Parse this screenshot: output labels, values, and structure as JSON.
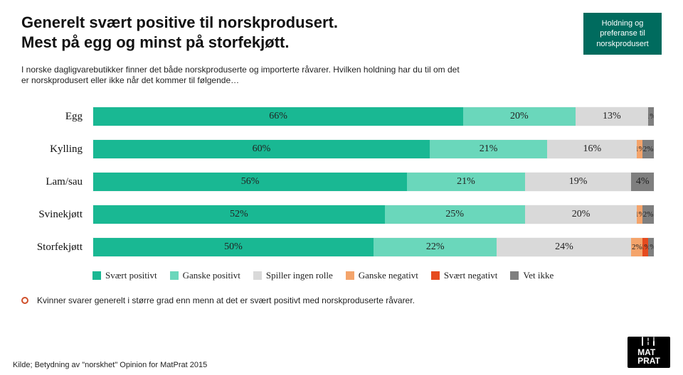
{
  "title_line1": "Generelt svært positive til norskprodusert.",
  "title_line2": "Mest på egg og minst på storfekjøtt.",
  "badge_line1": "Holdning og",
  "badge_line2": "preferanse til",
  "badge_line3": "norskprodusert",
  "subtitle": "I norske dagligvarebutikker finner det både norskproduserte og importerte råvarer. Hvilken holdning har du til om det er norskprodusert eller ikke når det kommer til følgende…",
  "categories": [
    {
      "label": "Egg",
      "vals": [
        66,
        20,
        13,
        0,
        0,
        1
      ]
    },
    {
      "label": "Kylling",
      "vals": [
        60,
        21,
        16,
        1,
        0,
        2
      ]
    },
    {
      "label": "Lam/sau",
      "vals": [
        56,
        21,
        19,
        0,
        0,
        4
      ]
    },
    {
      "label": "Svinekjøtt",
      "vals": [
        52,
        25,
        20,
        1,
        0,
        2
      ]
    },
    {
      "label": "Storfekjøtt",
      "vals": [
        50,
        22,
        24,
        2,
        1,
        1
      ]
    }
  ],
  "series": [
    {
      "name": "Svært positivt",
      "color": "#19b893"
    },
    {
      "name": "Ganske positivt",
      "color": "#6ad7bb"
    },
    {
      "name": "Spiller ingen rolle",
      "color": "#d9d9d9"
    },
    {
      "name": "Ganske negativt",
      "color": "#f4a46b"
    },
    {
      "name": "Svært negativt",
      "color": "#e64b1f"
    },
    {
      "name": "Vet ikke",
      "color": "#7f7f7f"
    }
  ],
  "footnote": "Kvinner svarer generelt i større grad enn menn at det er svært positivt med norskproduserte råvarer.",
  "source": "Kilde; Betydning av \"norskhet\" Opinion for MatPrat 2015",
  "logo_top": "MAT",
  "logo_bottom": "PRAT"
}
